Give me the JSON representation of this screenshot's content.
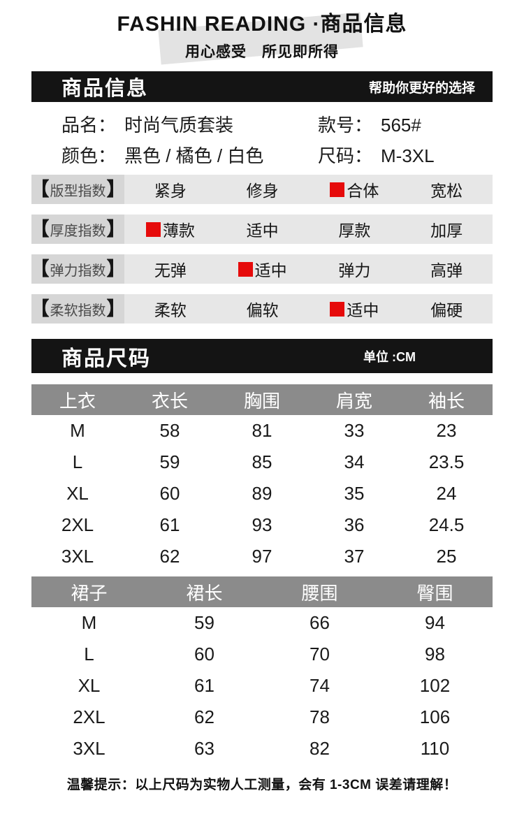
{
  "theme": {
    "accent-red": "#e60b0b",
    "bar-black": "#141414",
    "table-header-gray": "#8b8b8b",
    "row-gray": "#e7e7e7",
    "label-gray": "#d6d6d6",
    "shape-gray": "#e3e3e3"
  },
  "header": {
    "title": "FASHIN READING ·商品信息",
    "subtitle": "用心感受　所见即所得"
  },
  "info_bar": {
    "title": "商品信息",
    "tagline": "帮助你更好的选择"
  },
  "product": {
    "name_label": "品名：",
    "name_value": "时尚气质套装",
    "style_label": "款号：",
    "style_value": "565#",
    "color_label": "颜色：",
    "color_value": "黑色 / 橘色 / 白色",
    "size_label": "尺码：",
    "size_value": "M-3XL"
  },
  "indexes": {
    "bracket_left": "【",
    "bracket_right": "】",
    "rows": [
      {
        "label": "版型指数",
        "options": [
          "紧身",
          "修身",
          "合体",
          "宽松"
        ],
        "selected_index": 2
      },
      {
        "label": "厚度指数",
        "options": [
          "薄款",
          "适中",
          "厚款",
          "加厚"
        ],
        "selected_index": 0
      },
      {
        "label": "弹力指数",
        "options": [
          "无弹",
          "适中",
          "弹力",
          "高弹"
        ],
        "selected_index": 1
      },
      {
        "label": "柔软指数",
        "options": [
          "柔软",
          "偏软",
          "适中",
          "偏硬"
        ],
        "selected_index": 2
      }
    ]
  },
  "size_bar": {
    "title": "商品尺码",
    "unit": "单位 :CM"
  },
  "tables": [
    {
      "name": "上衣",
      "headers": [
        "上衣",
        "衣长",
        "胸围",
        "肩宽",
        "袖长"
      ],
      "rows": [
        [
          "M",
          "58",
          "81",
          "33",
          "23"
        ],
        [
          "L",
          "59",
          "85",
          "34",
          "23.5"
        ],
        [
          "XL",
          "60",
          "89",
          "35",
          "24"
        ],
        [
          "2XL",
          "61",
          "93",
          "36",
          "24.5"
        ],
        [
          "3XL",
          "62",
          "97",
          "37",
          "25"
        ]
      ]
    },
    {
      "name": "裙子",
      "headers": [
        "裙子",
        "裙长",
        "腰围",
        "臀围"
      ],
      "rows": [
        [
          "M",
          "59",
          "66",
          "94"
        ],
        [
          "L",
          "60",
          "70",
          "98"
        ],
        [
          "XL",
          "61",
          "74",
          "102"
        ],
        [
          "2XL",
          "62",
          "78",
          "106"
        ],
        [
          "3XL",
          "63",
          "82",
          "110"
        ]
      ]
    }
  ],
  "note": "温馨提示：以上尺码为实物人工测量，会有 1-3CM 误差请理解！"
}
